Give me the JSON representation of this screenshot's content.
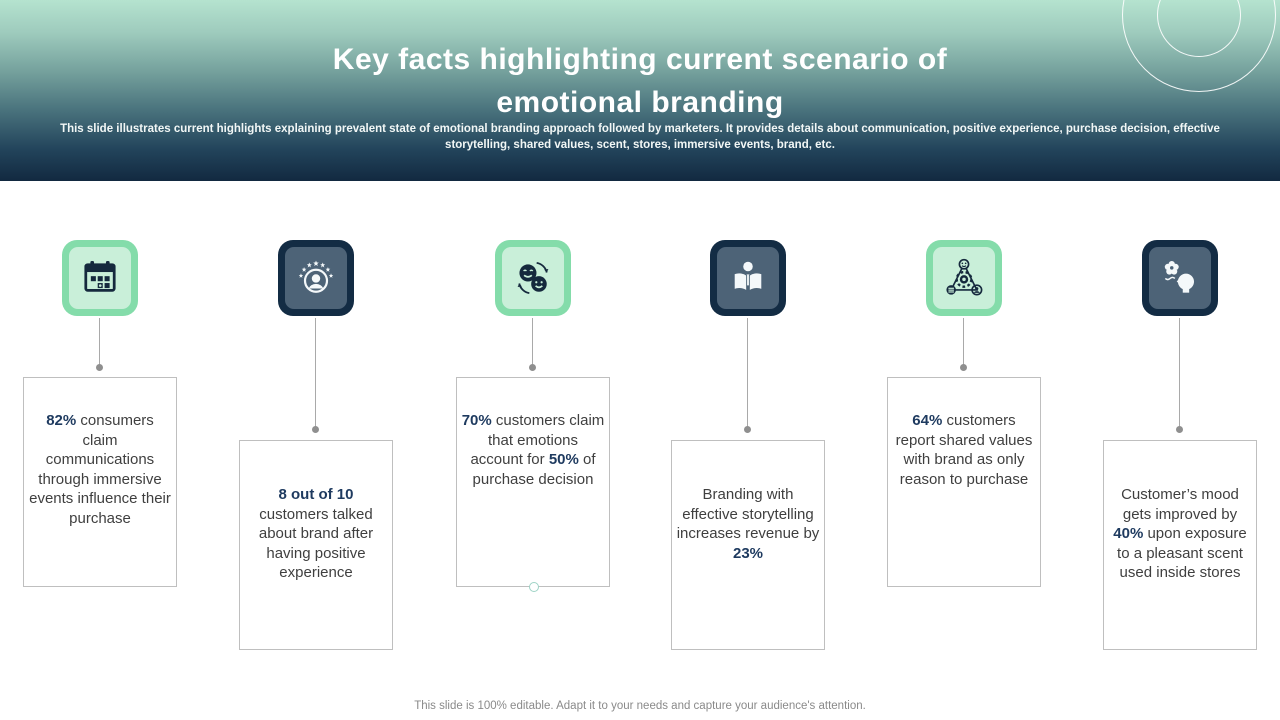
{
  "header": {
    "title_line1": "Key facts highlighting current scenario of",
    "title_line2": "emotional branding",
    "subtitle": "This slide illustrates current highlights explaining prevalent state of emotional branding approach followed by marketers. It provides details about communication, positive experience, purchase decision, effective storytelling, shared values, scent, stores, immersive events, brand, etc."
  },
  "colors": {
    "accent_green": "#84dcaa",
    "accent_green_light": "#c9efd9",
    "navy_dark": "#132c44",
    "navy_slate": "#4d6377",
    "number_text": "#1e3a5f",
    "body_text": "#3f3f3f",
    "header_gradient_top": "#b5e3cf",
    "header_gradient_bottom": "#122940"
  },
  "facts": [
    {
      "icon": "calendar-icon",
      "tile": "green",
      "segments": [
        {
          "text": "82%",
          "bold": true
        },
        {
          "text": " consumers claim communications through immersive events influence their purchase",
          "bold": false
        }
      ]
    },
    {
      "icon": "customer-rating-icon",
      "tile": "navy",
      "segments": [
        {
          "text": "8 out of 10",
          "bold": true
        },
        {
          "text": " customers talked about brand after having positive experience",
          "bold": false
        }
      ]
    },
    {
      "icon": "emotions-exchange-icon",
      "tile": "green",
      "segments": [
        {
          "text": "70%",
          "bold": true
        },
        {
          "text": " customers claim that emotions account for ",
          "bold": false
        },
        {
          "text": "50%",
          "bold": true
        },
        {
          "text": " of purchase decision",
          "bold": false
        }
      ]
    },
    {
      "icon": "storytelling-icon",
      "tile": "navy",
      "segments": [
        {
          "text": "Branding with effective storytelling increases revenue by ",
          "bold": false
        },
        {
          "text": "23%",
          "bold": true
        }
      ]
    },
    {
      "icon": "shared-values-icon",
      "tile": "green",
      "segments": [
        {
          "text": "64%",
          "bold": true
        },
        {
          "text": " customers report shared values with brand as only reason to purchase",
          "bold": false
        }
      ]
    },
    {
      "icon": "scent-icon",
      "tile": "navy",
      "segments": [
        {
          "text": "Customer’s mood gets improved by ",
          "bold": false
        },
        {
          "text": "40%",
          "bold": true
        },
        {
          "text": " upon exposure to a pleasant scent used inside stores",
          "bold": false
        }
      ]
    }
  ],
  "footer": {
    "text": "This slide is 100% editable.  Adapt it to your needs and capture your audience's attention."
  }
}
